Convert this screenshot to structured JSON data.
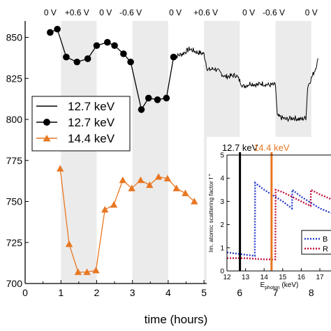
{
  "chart_data": [
    {
      "type": "line",
      "title": "",
      "xlabel": "time (hours)",
      "ylabel": "",
      "xlim": [
        0,
        8.2
      ],
      "ylim": [
        700,
        860
      ],
      "x_ticks": [
        "0",
        "1",
        "2",
        "3",
        "4",
        "5",
        "6",
        "7",
        "8"
      ],
      "x_tick_values": [
        0,
        1,
        2,
        3,
        4,
        5,
        6,
        7,
        8
      ],
      "y_ticks": [
        "700",
        "725",
        "750",
        "775",
        "800",
        "825",
        "850"
      ],
      "y_tick_values": [
        700,
        725,
        750,
        775,
        800,
        825,
        850
      ],
      "top_labels": [
        "0 V",
        "+0.6 V",
        "0 V",
        "-0.6 V",
        "0 V",
        "+0.6 V",
        "0 V",
        "-0.6 V",
        "0 V"
      ],
      "top_label_positions": [
        0.7,
        1.45,
        2.25,
        2.95,
        4.2,
        5.05,
        6.25,
        6.95,
        8.0
      ],
      "shaded_bands": [
        [
          1.0,
          2.0
        ],
        [
          3.0,
          4.0
        ],
        [
          5.0,
          6.0
        ],
        [
          7.0,
          8.0
        ]
      ],
      "grid": false,
      "legend_position": "left",
      "series": [
        {
          "name": "12.7 keV",
          "style": "solid-line",
          "color": "#000000",
          "x": [
            4.15,
            4.4,
            4.6,
            4.8,
            5.0,
            5.1,
            5.3,
            5.6,
            5.9,
            6.1,
            6.3,
            6.5,
            6.6,
            6.8,
            7.0,
            7.05,
            7.3,
            7.5,
            7.7,
            7.85,
            7.9,
            8.1,
            8.2
          ],
          "y": [
            838,
            840,
            843,
            841,
            840,
            830,
            831,
            826,
            827,
            820,
            822,
            821,
            822,
            821,
            821,
            802,
            800,
            801,
            800,
            801,
            820,
            830,
            837
          ]
        },
        {
          "name": "12.7 keV",
          "style": "line-with-circles",
          "color": "#000000",
          "x": [
            0.7,
            0.9,
            1.15,
            1.45,
            1.75,
            2.0,
            2.3,
            2.5,
            2.75,
            2.95,
            3.25,
            3.45,
            3.7,
            3.95,
            4.15
          ],
          "y": [
            853,
            855,
            838,
            835,
            837,
            845,
            847,
            845,
            840,
            835,
            806,
            813,
            812,
            813,
            838
          ]
        },
        {
          "name": "14.4 keV",
          "style": "line-with-triangles",
          "color": "#E87722",
          "x": [
            0.98,
            1.23,
            1.48,
            1.73,
            1.98,
            2.23,
            2.48,
            2.73,
            2.98,
            3.23,
            3.48,
            3.73,
            3.98,
            4.23,
            4.48,
            4.73
          ],
          "y": [
            770,
            724,
            707,
            707,
            708,
            745,
            748,
            763,
            758,
            763,
            760,
            765,
            764,
            758,
            755,
            750
          ]
        }
      ]
    },
    {
      "type": "line",
      "title": "",
      "xlabel": "E_photon (keV)",
      "xlabel_main": "E",
      "xlabel_sub": "photon",
      "xlabel_unit": " (keV)",
      "ylabel": "Im. atomic scattering factor f ''",
      "xlim": [
        12,
        17.6
      ],
      "ylim": [
        0,
        5
      ],
      "x_ticks": [
        "12",
        "13",
        "14",
        "15",
        "16",
        "17"
      ],
      "x_tick_values": [
        12,
        13,
        14,
        15,
        16,
        17
      ],
      "y_ticks": [
        "0",
        "1",
        "2",
        "3",
        "4",
        "5"
      ],
      "y_tick_values": [
        0,
        1,
        2,
        3,
        4,
        5
      ],
      "vertical_markers": [
        {
          "label": "12.7 keV",
          "x": 12.7,
          "color": "#000000"
        },
        {
          "label": "14.4 keV",
          "x": 14.4,
          "color": "#E87722"
        }
      ],
      "legend_position": "bottom-right",
      "legend_labels": [
        "B",
        "R"
      ],
      "series": [
        {
          "name": "B",
          "style": "dotted",
          "color": "#2B3FCB",
          "x": [
            12.0,
            13.0,
            13.5,
            13.52,
            14.0,
            15.0,
            15.5,
            15.52,
            16.0,
            17.0,
            17.6
          ],
          "y": [
            0.8,
            0.7,
            0.65,
            3.8,
            3.5,
            3.0,
            2.7,
            3.5,
            3.2,
            2.7,
            2.5
          ]
        },
        {
          "name": "R",
          "style": "dotted",
          "color": "#C0143C",
          "x": [
            12.0,
            13.0,
            14.0,
            14.6,
            14.62,
            15.0,
            16.0,
            16.5,
            16.52,
            17.0,
            17.6
          ],
          "y": [
            0.55,
            0.55,
            0.5,
            0.5,
            3.5,
            3.4,
            3.0,
            2.8,
            3.5,
            3.3,
            3.1
          ]
        }
      ]
    }
  ],
  "legend": {
    "items": [
      {
        "label": "12.7 keV",
        "marker": "line",
        "color": "#000000"
      },
      {
        "label": "12.7 keV",
        "marker": "circle",
        "color": "#000000"
      },
      {
        "label": "14.4 keV",
        "marker": "triangle",
        "color": "#E87722"
      }
    ]
  },
  "colors": {
    "band": "#EBEBEB",
    "axis": "#000000",
    "orange": "#E87722",
    "blue": "#2B3FCB",
    "red": "#C0143C"
  }
}
